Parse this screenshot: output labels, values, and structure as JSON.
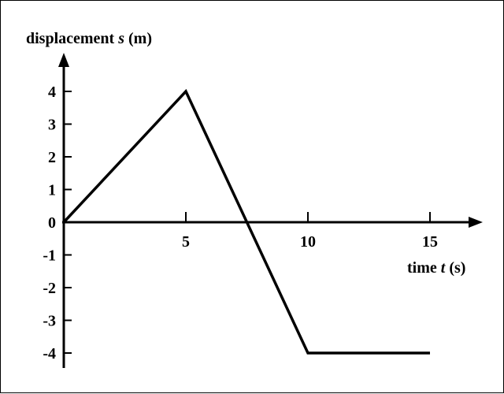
{
  "chart_data": {
    "type": "line",
    "ylabel_prefix": "displacement ",
    "ylabel_var": "s",
    "ylabel_unit": " (m)",
    "xlabel_prefix": "time ",
    "xlabel_var": "t",
    "xlabel_unit": " (s)",
    "x_ticks": [
      5,
      10,
      15
    ],
    "y_ticks": [
      4,
      3,
      2,
      1,
      0,
      -1,
      -2,
      -3,
      -4
    ],
    "xlim": [
      0,
      15
    ],
    "ylim": [
      -4,
      4
    ],
    "grid": false,
    "series": [
      {
        "x": [
          0,
          5,
          10,
          15
        ],
        "y": [
          0,
          4,
          -4,
          -4
        ]
      }
    ]
  }
}
